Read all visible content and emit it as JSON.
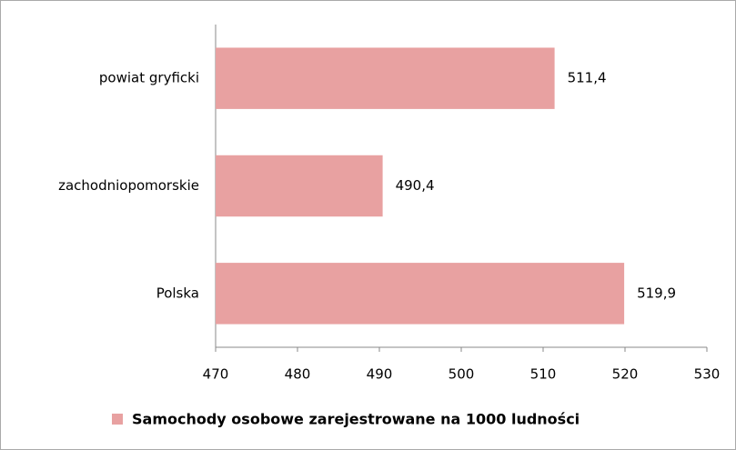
{
  "chart_data": {
    "type": "barh",
    "categories": [
      "powiat gryficki",
      "zachodniopomorskie",
      "Polska"
    ],
    "series": [
      {
        "name": "Samochody osobowe zarejestrowane na 1000 ludności",
        "color": "#e8a1a1",
        "values": [
          511.4,
          490.4,
          519.9
        ],
        "value_labels": [
          "511,4",
          "490,4",
          "519,9"
        ]
      }
    ],
    "xlim": [
      470,
      530
    ],
    "xticks": [
      470,
      480,
      490,
      500,
      510,
      520,
      530
    ],
    "grid": false,
    "legend": "bottom"
  }
}
